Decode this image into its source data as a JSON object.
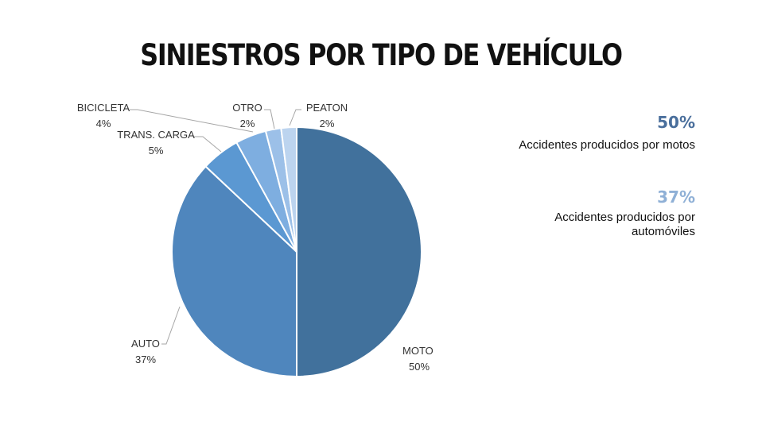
{
  "chart_data": {
    "type": "pie",
    "title": "SINIESTROS POR TIPO DE VEHÍCULO",
    "slices": [
      {
        "label": "MOTO",
        "value": 50,
        "value_label": "50%",
        "color": "#41719c"
      },
      {
        "label": "AUTO",
        "value": 37,
        "value_label": "37%",
        "color": "#4f86bd"
      },
      {
        "label": "TRANS. CARGA",
        "value": 5,
        "value_label": "5%",
        "color": "#5b98d2"
      },
      {
        "label": "BICICLETA",
        "value": 4,
        "value_label": "4%",
        "color": "#7eaee0"
      },
      {
        "label": "OTRO",
        "value": 2,
        "value_label": "2%",
        "color": "#9cc0e8"
      },
      {
        "label": "PEATON",
        "value": 2,
        "value_label": "2%",
        "color": "#bcd4ef"
      }
    ],
    "legend": "none"
  },
  "stats": [
    {
      "value": "50%",
      "description": [
        "Accidentes producidos por motos"
      ],
      "color": "#4a6f9c"
    },
    {
      "value": "37%",
      "description": [
        "Accidentes producidos por",
        "automóviles"
      ],
      "color": "#8fb0d6"
    }
  ]
}
